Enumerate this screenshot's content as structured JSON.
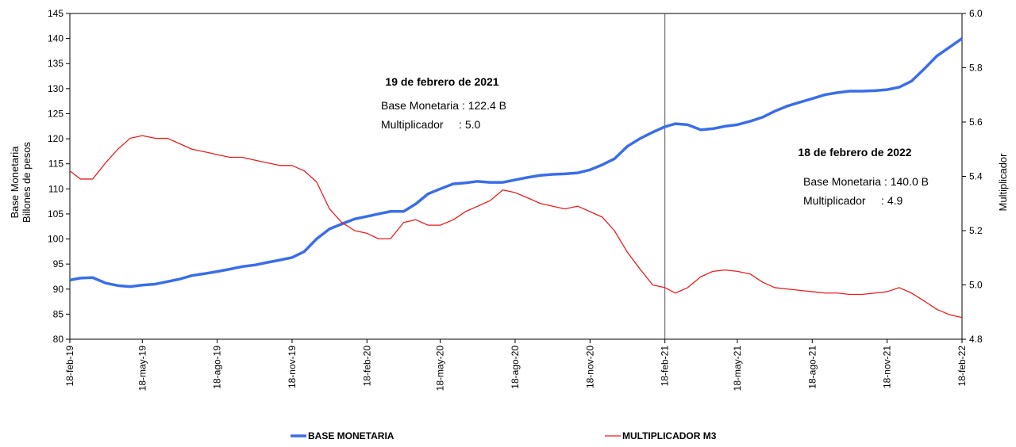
{
  "chart_data": {
    "type": "line",
    "ylabel": [
      "Base Monetaria",
      "Billones de pesos"
    ],
    "y2label": "Multiplicador",
    "x": [
      "2019-02-18",
      "2019-03-03",
      "2019-03-18",
      "2019-04-03",
      "2019-04-18",
      "2019-05-03",
      "2019-05-18",
      "2019-06-03",
      "2019-06-18",
      "2019-07-03",
      "2019-07-18",
      "2019-08-03",
      "2019-08-18",
      "2019-09-03",
      "2019-09-18",
      "2019-10-03",
      "2019-10-18",
      "2019-11-03",
      "2019-11-18",
      "2019-12-03",
      "2019-12-18",
      "2020-01-03",
      "2020-01-18",
      "2020-02-03",
      "2020-02-18",
      "2020-03-03",
      "2020-03-18",
      "2020-04-03",
      "2020-04-18",
      "2020-05-03",
      "2020-05-18",
      "2020-06-03",
      "2020-06-18",
      "2020-07-03",
      "2020-07-18",
      "2020-08-03",
      "2020-08-18",
      "2020-09-03",
      "2020-09-18",
      "2020-10-03",
      "2020-10-18",
      "2020-11-03",
      "2020-11-18",
      "2020-12-03",
      "2020-12-18",
      "2021-01-03",
      "2021-01-18",
      "2021-02-03",
      "2021-02-18",
      "2021-03-03",
      "2021-03-18",
      "2021-04-03",
      "2021-04-18",
      "2021-05-03",
      "2021-05-18",
      "2021-06-03",
      "2021-06-18",
      "2021-07-03",
      "2021-07-18",
      "2021-08-03",
      "2021-08-18",
      "2021-09-03",
      "2021-09-18",
      "2021-10-03",
      "2021-10-18",
      "2021-11-03",
      "2021-11-18",
      "2021-12-03",
      "2021-12-18",
      "2022-01-03",
      "2022-01-18",
      "2022-02-03",
      "2022-02-18"
    ],
    "series": [
      {
        "name": "BASE MONETARIA",
        "color": "#3a6ee8",
        "axis": "y",
        "values": [
          91.8,
          92.2,
          92.3,
          91.2,
          90.7,
          90.5,
          90.8,
          91.0,
          91.5,
          92.0,
          92.7,
          93.1,
          93.5,
          94.0,
          94.5,
          94.8,
          95.3,
          95.8,
          96.3,
          97.5,
          100.0,
          102.0,
          103.0,
          104.0,
          104.5,
          105.0,
          105.5,
          105.5,
          107.0,
          109.0,
          110.0,
          111.0,
          111.2,
          111.5,
          111.3,
          111.3,
          111.8,
          112.3,
          112.7,
          112.9,
          113.0,
          113.2,
          113.8,
          114.8,
          116.0,
          118.5,
          120.0,
          121.3,
          122.4,
          123.0,
          122.8,
          121.8,
          122.0,
          122.5,
          122.8,
          123.5,
          124.3,
          125.5,
          126.5,
          127.3,
          128.0,
          128.8,
          129.2,
          129.5,
          129.5,
          129.6,
          129.8,
          130.3,
          131.5,
          134.0,
          136.5,
          138.3,
          140.0
        ]
      },
      {
        "name": "MULTIPLICADOR M3",
        "color": "#ee1c1c",
        "axis": "y2",
        "values": [
          5.42,
          5.39,
          5.39,
          5.45,
          5.5,
          5.54,
          5.55,
          5.54,
          5.54,
          5.52,
          5.5,
          5.49,
          5.48,
          5.47,
          5.47,
          5.46,
          5.45,
          5.44,
          5.44,
          5.42,
          5.38,
          5.28,
          5.23,
          5.2,
          5.19,
          5.17,
          5.17,
          5.23,
          5.24,
          5.22,
          5.22,
          5.24,
          5.27,
          5.29,
          5.31,
          5.35,
          5.34,
          5.32,
          5.3,
          5.29,
          5.28,
          5.29,
          5.27,
          5.25,
          5.2,
          5.12,
          5.06,
          5.0,
          4.99,
          4.97,
          4.99,
          5.03,
          5.05,
          5.055,
          5.05,
          5.04,
          5.01,
          4.99,
          4.985,
          4.98,
          4.975,
          4.97,
          4.97,
          4.965,
          4.965,
          4.97,
          4.975,
          4.99,
          4.97,
          4.94,
          4.91,
          4.89,
          4.88
        ]
      }
    ],
    "xlim": [
      "2019-02-18",
      "2022-02-18"
    ],
    "xticks": [
      {
        "value": "2019-02-18",
        "label": "18-feb-19"
      },
      {
        "value": "2019-05-18",
        "label": "18-may-19"
      },
      {
        "value": "2019-08-18",
        "label": "18-ago-19"
      },
      {
        "value": "2019-11-18",
        "label": "18-nov-19"
      },
      {
        "value": "2020-02-18",
        "label": "18-feb-20"
      },
      {
        "value": "2020-05-18",
        "label": "18-may-20"
      },
      {
        "value": "2020-08-18",
        "label": "18-ago-20"
      },
      {
        "value": "2020-11-18",
        "label": "18-nov-20"
      },
      {
        "value": "2021-02-18",
        "label": "18-feb-21"
      },
      {
        "value": "2021-05-18",
        "label": "18-may-21"
      },
      {
        "value": "2021-08-18",
        "label": "18-ago-21"
      },
      {
        "value": "2021-11-18",
        "label": "18-nov-21"
      },
      {
        "value": "2022-02-18",
        "label": "18-feb-22"
      }
    ],
    "ylim": [
      80,
      145
    ],
    "yticks": [
      80,
      85,
      90,
      95,
      100,
      105,
      110,
      115,
      120,
      125,
      130,
      135,
      140,
      145
    ],
    "y2lim": [
      4.8,
      6.0
    ],
    "y2ticks": [
      4.8,
      {
        "value": 5,
        "label": "5.0"
      },
      5.2,
      5.4,
      5.6,
      5.8,
      {
        "value": 6,
        "label": "6.0"
      }
    ],
    "vline": "2021-02-18",
    "annotations": [
      {
        "title": "19 de febrero de 2021",
        "lines": [
          "Base Monetaria : 122.4 B",
          "Multiplicador     : 5.0"
        ]
      },
      {
        "title": "18 de febrero de 2022",
        "lines": [
          "Base Monetaria : 140.0 B",
          "Multiplicador     : 4.9"
        ]
      }
    ],
    "legend": "bottom"
  }
}
